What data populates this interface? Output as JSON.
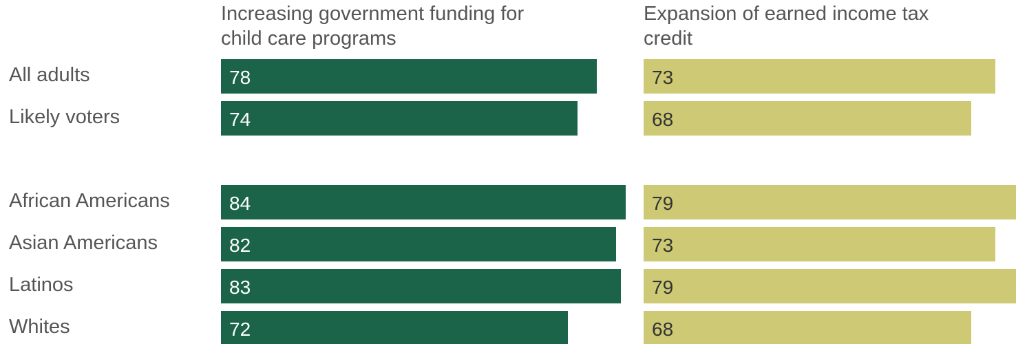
{
  "chart_data": {
    "type": "bar",
    "orientation": "horizontal",
    "categories": [
      "All adults",
      "Likely voters",
      "African Americans",
      "Asian Americans",
      "Latinos",
      "Whites"
    ],
    "series": [
      {
        "name": "Increasing government funding for child care programs",
        "title_lines": [
          "Increasing government funding for",
          "child care programs"
        ],
        "values": [
          78,
          74,
          84,
          82,
          83,
          72
        ],
        "color": "#1b644a",
        "label_color": "#ffffff"
      },
      {
        "name": "Expansion of earned income tax credit",
        "title_lines": [
          "Expansion of earned income tax",
          "credit"
        ],
        "values": [
          73,
          68,
          79,
          73,
          79,
          68
        ],
        "color": "#cdc974",
        "label_color": "#333333"
      }
    ],
    "grid": false,
    "legend": "none"
  }
}
